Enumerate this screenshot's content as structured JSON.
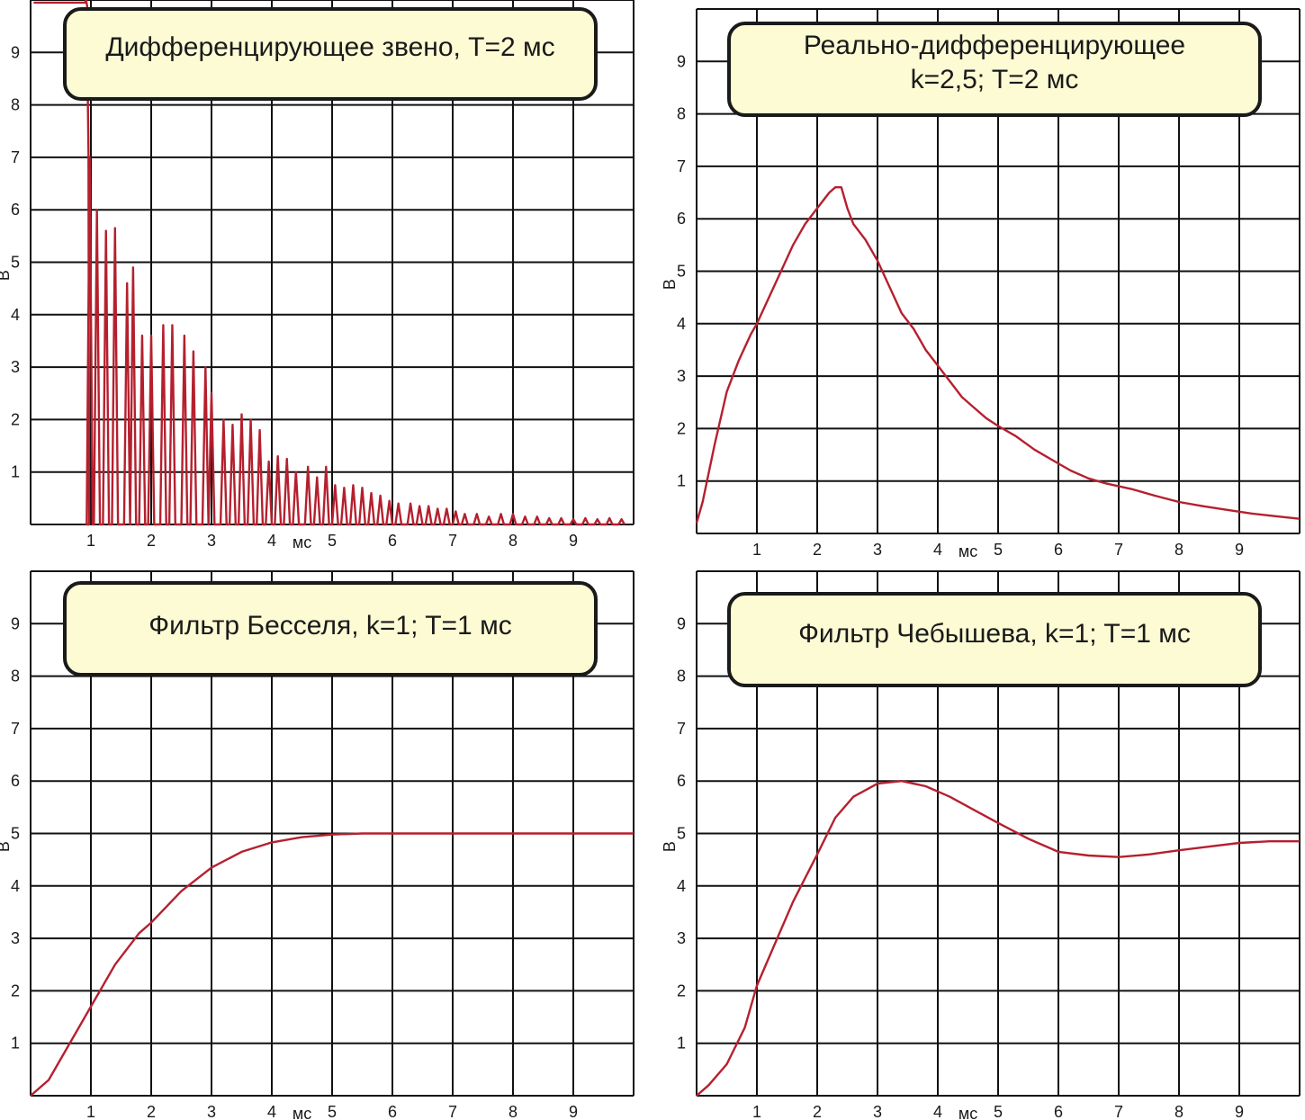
{
  "chart_data": [
    {
      "type": "line",
      "title_lines": [
        "Дифференцирующее звено, T=2 мс"
      ],
      "xlabel": "мс",
      "ylabel": "В",
      "xlim": [
        0,
        10
      ],
      "ylim": [
        0,
        10
      ],
      "x_ticks": [
        "1",
        "2",
        "3",
        "4",
        "5",
        "6",
        "7",
        "8",
        "9"
      ],
      "y_ticks": [
        "1",
        "2",
        "3",
        "4",
        "5",
        "6",
        "7",
        "8",
        "9"
      ],
      "grid": true,
      "line_color": "#b5202e",
      "description_series": "oscillating decaying pulses",
      "series": [
        {
          "pulse_start": 0.95,
          "pulse_end": 9.8,
          "saturation_value": 10,
          "peaks": [
            [
              0.98,
              7.0
            ],
            [
              1.1,
              6.0
            ],
            [
              1.25,
              5.6
            ],
            [
              1.4,
              5.65
            ],
            [
              1.6,
              4.6
            ],
            [
              1.7,
              4.9
            ],
            [
              1.85,
              3.6
            ],
            [
              2.0,
              3.6
            ],
            [
              2.2,
              3.8
            ],
            [
              2.35,
              3.8
            ],
            [
              2.55,
              3.6
            ],
            [
              2.7,
              3.3
            ],
            [
              2.9,
              3.0
            ],
            [
              3.0,
              2.5
            ],
            [
              3.2,
              2.0
            ],
            [
              3.35,
              1.9
            ],
            [
              3.5,
              2.1
            ],
            [
              3.65,
              2.0
            ],
            [
              3.8,
              1.8
            ],
            [
              3.95,
              1.2
            ],
            [
              4.1,
              1.3
            ],
            [
              4.25,
              1.25
            ],
            [
              4.4,
              1.0
            ],
            [
              4.6,
              1.1
            ],
            [
              4.75,
              0.9
            ],
            [
              4.9,
              1.1
            ],
            [
              5.05,
              0.75
            ],
            [
              5.2,
              0.7
            ],
            [
              5.35,
              0.75
            ],
            [
              5.5,
              0.7
            ],
            [
              5.65,
              0.6
            ],
            [
              5.8,
              0.55
            ],
            [
              5.95,
              0.45
            ],
            [
              6.1,
              0.4
            ],
            [
              6.3,
              0.4
            ],
            [
              6.45,
              0.35
            ],
            [
              6.6,
              0.35
            ],
            [
              6.75,
              0.3
            ],
            [
              6.9,
              0.3
            ],
            [
              7.05,
              0.25
            ],
            [
              7.2,
              0.2
            ],
            [
              7.4,
              0.2
            ],
            [
              7.6,
              0.15
            ],
            [
              7.8,
              0.2
            ],
            [
              8.0,
              0.2
            ],
            [
              8.2,
              0.15
            ],
            [
              8.4,
              0.15
            ],
            [
              8.6,
              0.12
            ],
            [
              8.8,
              0.12
            ],
            [
              9.0,
              0.1
            ],
            [
              9.2,
              0.12
            ],
            [
              9.4,
              0.1
            ],
            [
              9.6,
              0.12
            ],
            [
              9.8,
              0.1
            ]
          ]
        }
      ]
    },
    {
      "type": "line",
      "title_lines": [
        "Реально-дифференцирующее",
        "k=2,5; T=2 мс"
      ],
      "xlabel": "мс",
      "ylabel": "В",
      "xlim": [
        0,
        10
      ],
      "ylim": [
        0,
        10
      ],
      "x_ticks": [
        "1",
        "2",
        "3",
        "4",
        "5",
        "6",
        "7",
        "8",
        "9"
      ],
      "y_ticks": [
        "1",
        "2",
        "3",
        "4",
        "5",
        "6",
        "7",
        "8",
        "9"
      ],
      "grid": true,
      "line_color": "#b5202e",
      "series": [
        {
          "x": [
            0,
            0.1,
            0.3,
            0.5,
            0.7,
            0.9,
            1.0,
            1.2,
            1.4,
            1.6,
            1.8,
            2.0,
            2.2,
            2.3,
            2.4,
            2.5,
            2.6,
            2.8,
            3.0,
            3.2,
            3.4,
            3.6,
            3.8,
            4.0,
            4.2,
            4.4,
            4.6,
            4.8,
            5.0,
            5.3,
            5.6,
            5.9,
            6.2,
            6.5,
            6.8,
            7.2,
            7.6,
            8.0,
            8.4,
            8.8,
            9.2,
            9.6,
            10.0
          ],
          "y": [
            0.2,
            0.6,
            1.7,
            2.7,
            3.3,
            3.8,
            4.0,
            4.5,
            5.0,
            5.5,
            5.9,
            6.2,
            6.5,
            6.6,
            6.6,
            6.2,
            5.9,
            5.6,
            5.2,
            4.7,
            4.2,
            3.9,
            3.5,
            3.2,
            2.9,
            2.6,
            2.4,
            2.2,
            2.05,
            1.85,
            1.6,
            1.4,
            1.2,
            1.05,
            0.95,
            0.85,
            0.72,
            0.6,
            0.52,
            0.45,
            0.38,
            0.33,
            0.28
          ]
        }
      ]
    },
    {
      "type": "line",
      "title_lines": [
        "Фильтр Бесселя, k=1; T=1 мс"
      ],
      "xlabel": "мс",
      "ylabel": "В",
      "xlim": [
        0,
        10
      ],
      "ylim": [
        0,
        10
      ],
      "x_ticks": [
        "1",
        "2",
        "3",
        "4",
        "5",
        "6",
        "7",
        "8",
        "9"
      ],
      "y_ticks": [
        "1",
        "2",
        "3",
        "4",
        "5",
        "6",
        "7",
        "8",
        "9"
      ],
      "grid": true,
      "line_color": "#b5202e",
      "series": [
        {
          "x": [
            0,
            0.3,
            0.6,
            1.0,
            1.4,
            1.8,
            2.0,
            2.5,
            3.0,
            3.5,
            4.0,
            4.5,
            5.0,
            5.5,
            6.0,
            7.0,
            8.0,
            9.0,
            10.0
          ],
          "y": [
            0.0,
            0.3,
            0.9,
            1.7,
            2.5,
            3.1,
            3.3,
            3.9,
            4.35,
            4.65,
            4.83,
            4.93,
            4.98,
            5.0,
            5.0,
            5.0,
            5.0,
            5.0,
            5.0
          ]
        }
      ]
    },
    {
      "type": "line",
      "title_lines": [
        "Фильтр Чебышева, k=1; T=1 мс"
      ],
      "xlabel": "мс",
      "ylabel": "В",
      "xlim": [
        0,
        10
      ],
      "ylim": [
        0,
        10
      ],
      "x_ticks": [
        "1",
        "2",
        "3",
        "4",
        "5",
        "6",
        "7",
        "8",
        "9"
      ],
      "y_ticks": [
        "1",
        "2",
        "3",
        "4",
        "5",
        "6",
        "7",
        "8",
        "9"
      ],
      "grid": true,
      "line_color": "#b5202e",
      "series": [
        {
          "x": [
            0,
            0.2,
            0.5,
            0.8,
            1.0,
            1.3,
            1.6,
            2.0,
            2.3,
            2.6,
            3.0,
            3.4,
            3.8,
            4.2,
            4.6,
            5.0,
            5.5,
            6.0,
            6.5,
            7.0,
            7.5,
            8.0,
            8.5,
            9.0,
            9.5,
            10.0
          ],
          "y": [
            0.0,
            0.2,
            0.6,
            1.3,
            2.1,
            2.9,
            3.7,
            4.6,
            5.3,
            5.7,
            5.95,
            6.0,
            5.9,
            5.7,
            5.45,
            5.2,
            4.9,
            4.65,
            4.58,
            4.55,
            4.6,
            4.68,
            4.75,
            4.82,
            4.85,
            4.85
          ]
        }
      ]
    }
  ]
}
